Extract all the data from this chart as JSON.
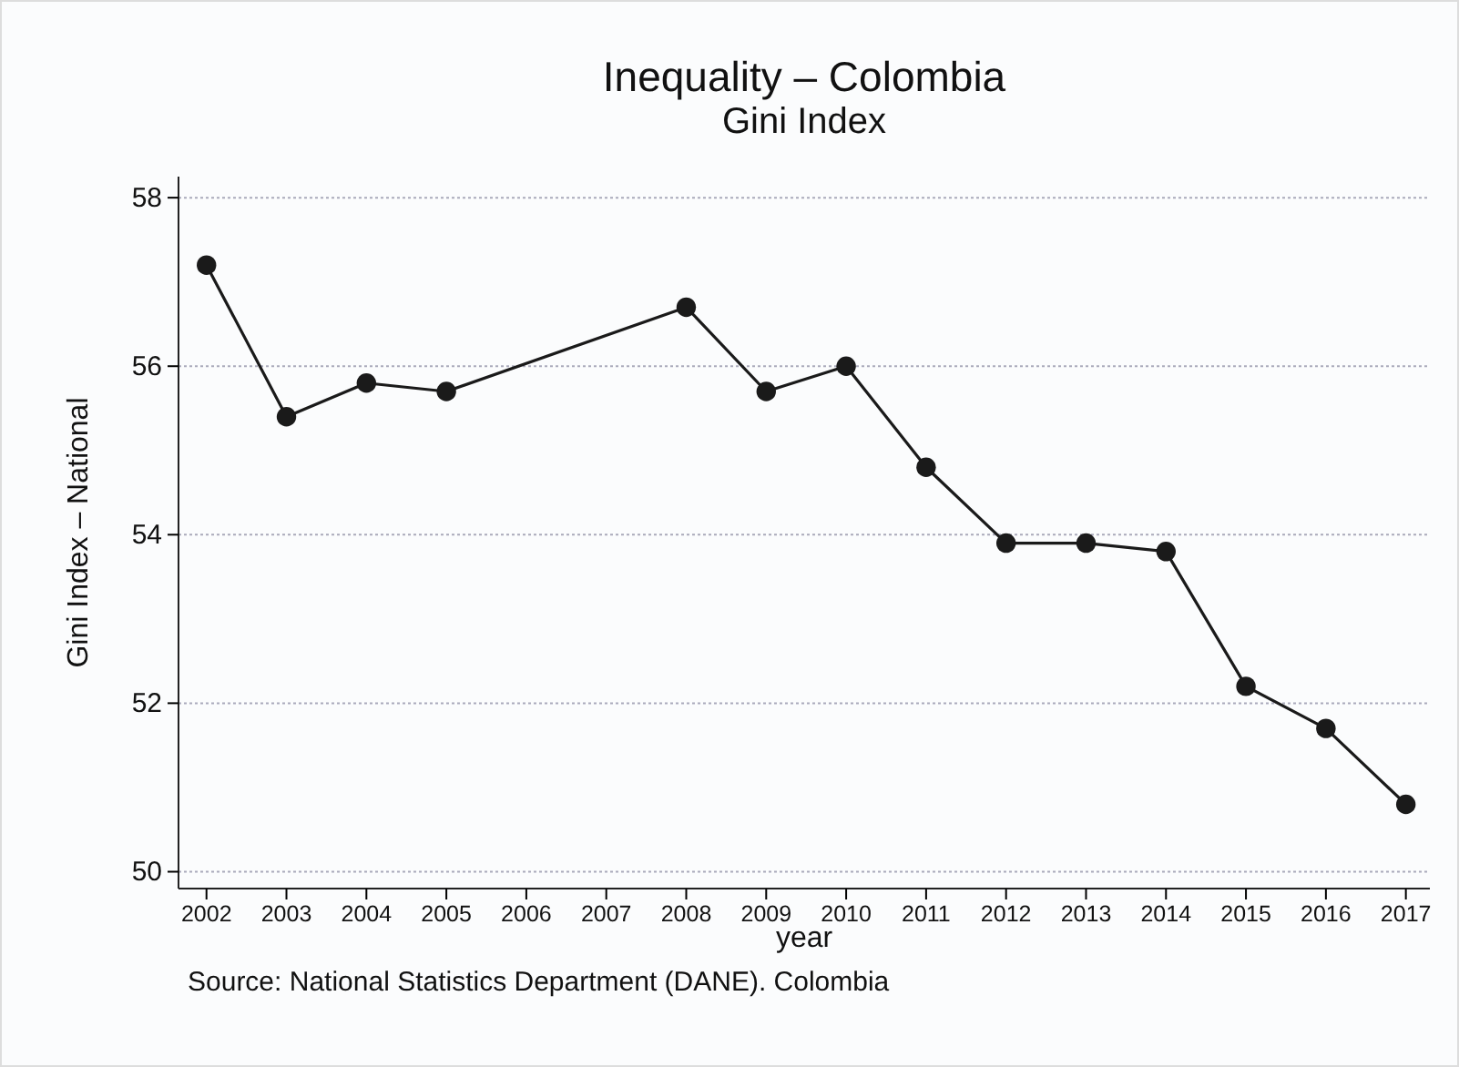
{
  "chart_data": {
    "type": "line",
    "title": "Inequality – Colombia",
    "subtitle": "Gini Index",
    "xlabel": "year",
    "ylabel": "Gini Index – National",
    "x": [
      2002,
      2003,
      2004,
      2005,
      2008,
      2009,
      2010,
      2011,
      2012,
      2013,
      2014,
      2015,
      2016,
      2017
    ],
    "series": [
      {
        "color": "#1a1a1a",
        "values": [
          57.2,
          55.4,
          55.8,
          55.7,
          56.7,
          55.7,
          56.0,
          54.8,
          53.9,
          53.9,
          53.8,
          52.2,
          51.7,
          50.8
        ]
      }
    ],
    "xlim": [
      2001.65,
      2017.3
    ],
    "xticks": [
      2002,
      2003,
      2004,
      2005,
      2006,
      2007,
      2008,
      2009,
      2010,
      2011,
      2012,
      2013,
      2014,
      2015,
      2016,
      2017
    ],
    "ylim": [
      49.8,
      58.25
    ],
    "yticks": [
      50,
      52,
      54,
      56,
      58
    ],
    "grid": "y",
    "marker": "circle",
    "line_style": "solid",
    "annotations": [
      "Source: National Statistics Department (DANE). Colombia"
    ]
  }
}
